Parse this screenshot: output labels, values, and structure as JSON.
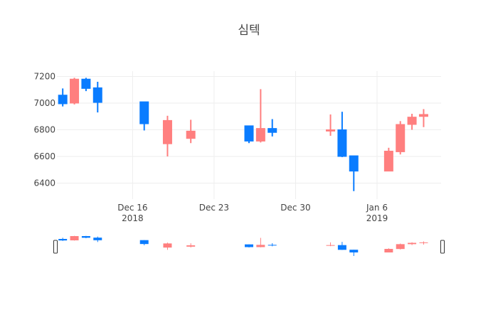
{
  "chart_data": {
    "type": "candlestick",
    "title": "심텍",
    "xlabel": "",
    "ylabel": "",
    "ylim": [
      6280,
      7240
    ],
    "x_range": [
      "2018-12-10",
      "2019-01-11"
    ],
    "y_ticks": [
      6400,
      6600,
      6800,
      7000,
      7200
    ],
    "x_ticks": [
      {
        "date": "2018-12-16",
        "label": "Dec 16",
        "sublabel": "2018"
      },
      {
        "date": "2018-12-23",
        "label": "Dec 23",
        "sublabel": ""
      },
      {
        "date": "2018-12-30",
        "label": "Dec 30",
        "sublabel": ""
      },
      {
        "date": "2019-01-06",
        "label": "Jan 6",
        "sublabel": "2019"
      }
    ],
    "colors": {
      "increasing": "#0a7cff",
      "decreasing": "#ff7f7f"
    },
    "grid": true,
    "rangeslider": true,
    "candles": [
      {
        "date": "2018-12-10",
        "open": 6995,
        "high": 7110,
        "low": 6975,
        "close": 7060
      },
      {
        "date": "2018-12-11",
        "open": 7180,
        "high": 7190,
        "low": 6990,
        "close": 7000
      },
      {
        "date": "2018-12-12",
        "open": 7110,
        "high": 7190,
        "low": 7090,
        "close": 7180
      },
      {
        "date": "2018-12-13",
        "open": 7005,
        "high": 7160,
        "low": 6930,
        "close": 7115
      },
      {
        "date": "2018-12-17",
        "open": 6845,
        "high": 7010,
        "low": 6795,
        "close": 7010
      },
      {
        "date": "2018-12-19",
        "open": 6870,
        "high": 6905,
        "low": 6600,
        "close": 6695
      },
      {
        "date": "2018-12-21",
        "open": 6790,
        "high": 6875,
        "low": 6700,
        "close": 6735
      },
      {
        "date": "2018-12-26",
        "open": 6715,
        "high": 6830,
        "low": 6700,
        "close": 6830
      },
      {
        "date": "2018-12-27",
        "open": 6810,
        "high": 7105,
        "low": 6705,
        "close": 6715
      },
      {
        "date": "2018-12-28",
        "open": 6780,
        "high": 6880,
        "low": 6750,
        "close": 6810
      },
      {
        "date": "2019-01-02",
        "open": 6800,
        "high": 6915,
        "low": 6755,
        "close": 6790
      },
      {
        "date": "2019-01-03",
        "open": 6600,
        "high": 6935,
        "low": 6595,
        "close": 6800
      },
      {
        "date": "2019-01-04",
        "open": 6490,
        "high": 6605,
        "low": 6340,
        "close": 6605
      },
      {
        "date": "2019-01-07",
        "open": 6640,
        "high": 6665,
        "low": 6490,
        "close": 6490
      },
      {
        "date": "2019-01-08",
        "open": 6840,
        "high": 6865,
        "low": 6615,
        "close": 6635
      },
      {
        "date": "2019-01-09",
        "open": 6895,
        "high": 6920,
        "low": 6800,
        "close": 6840
      },
      {
        "date": "2019-01-10",
        "open": 6915,
        "high": 6955,
        "low": 6820,
        "close": 6900
      }
    ]
  }
}
